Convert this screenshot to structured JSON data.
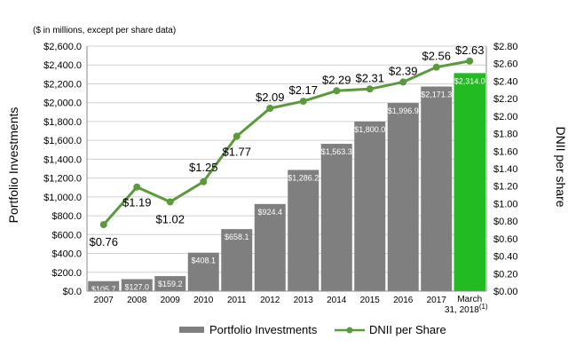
{
  "chart_data": {
    "type": "bar",
    "title": "($ in millions, except per share data)",
    "ylabel_left": "Portfolio Investments",
    "ylabel_right": "DNII per share",
    "ylim_left": [
      0,
      2600
    ],
    "ylim_right": [
      0,
      2.8
    ],
    "yticks_left": [
      "$0.0",
      "$200.0",
      "$400.0",
      "$600.0",
      "$800.0",
      "$1,000.0",
      "$1,200.0",
      "$1,400.0",
      "$1,600.0",
      "$1,800.0",
      "$2,000.0",
      "$2,200.0",
      "$2,400.0",
      "$2,600.0"
    ],
    "yticks_right": [
      "$0.00",
      "$0.20",
      "$0.40",
      "$0.60",
      "$0.80",
      "$1.00",
      "$1.20",
      "$1.40",
      "$1.60",
      "$1.80",
      "$2.00",
      "$2.20",
      "$2.40",
      "$2.60",
      "$2.80"
    ],
    "categories": [
      "2007",
      "2008",
      "2009",
      "2010",
      "2011",
      "2012",
      "2013",
      "2014",
      "2015",
      "2016",
      "2017",
      "March 31, 2018"
    ],
    "last_category_line1": "March",
    "last_category_line2": "31, 2018",
    "last_category_footnote": "(1)",
    "series": [
      {
        "name": "Portfolio Investments",
        "kind": "bar",
        "values": [
          105.7,
          127.0,
          159.2,
          408.1,
          658.1,
          924.4,
          1286.2,
          1563.3,
          1800.0,
          1996.9,
          2171.3,
          2314.0
        ],
        "labels": [
          "$105.7",
          "$127.0",
          "$159.2",
          "$408.1",
          "$658.1",
          "$924.4",
          "$1,286.2",
          "$1,563.3",
          "$1,800.0",
          "$1,996.9",
          "$2,171.3",
          "$2,314.0"
        ]
      },
      {
        "name": "DNII per Share",
        "kind": "line",
        "values": [
          0.76,
          1.19,
          1.02,
          1.25,
          1.77,
          2.09,
          2.17,
          2.29,
          2.31,
          2.39,
          2.56,
          2.63
        ],
        "labels": [
          "$0.76",
          "$1.19",
          "$1.02",
          "$1.25",
          "$1.77",
          "$2.09",
          "$2.17",
          "$2.29",
          "$2.31",
          "$2.39",
          "$2.56",
          "$2.63"
        ]
      }
    ],
    "grid": true,
    "legend": "bottom-center",
    "colors": {
      "bar": "#7f7f7f",
      "bar_highlight": "#22bb22",
      "line": "#5a9a3a",
      "grid": "#d0d0d0"
    }
  }
}
